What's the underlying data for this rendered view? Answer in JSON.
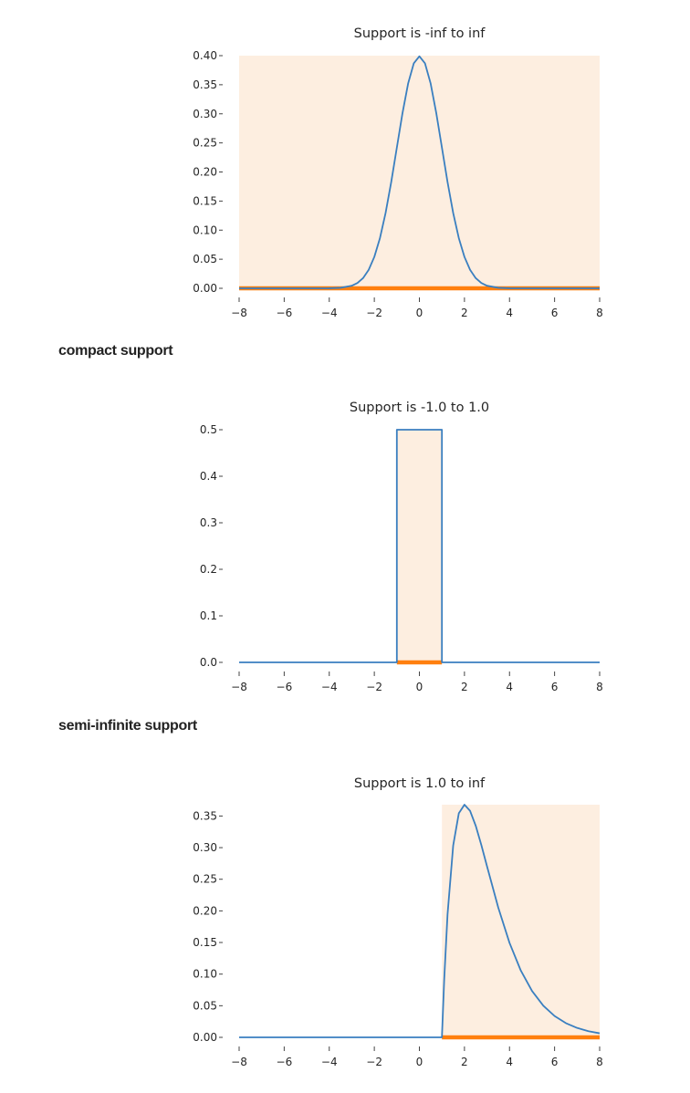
{
  "headings": [
    "compact support",
    "semi-infinite support"
  ],
  "colors": {
    "pdf_line": "#3a7fc0",
    "support_line": "#ff7f0e",
    "support_fill": "#fdeee0"
  },
  "chart_data": [
    {
      "type": "line",
      "title": "Support is -inf to inf",
      "xlabel": "",
      "ylabel": "",
      "xlim": [
        -8,
        8
      ],
      "ylim": [
        0,
        0.4
      ],
      "xticks": [
        -8,
        -6,
        -4,
        -2,
        0,
        2,
        4,
        6,
        8
      ],
      "yticks": [
        0,
        0.05,
        0.1,
        0.15,
        0.2,
        0.25,
        0.3,
        0.35,
        0.4
      ],
      "ytick_labels": [
        "0.00",
        "0.05",
        "0.10",
        "0.15",
        "0.20",
        "0.25",
        "0.30",
        "0.35",
        "0.40"
      ],
      "support": [
        -8,
        8
      ],
      "grid": false,
      "series": [
        {
          "x": [
            -8,
            -4,
            -3.5,
            -3,
            -2.75,
            -2.5,
            -2.25,
            -2,
            -1.75,
            -1.5,
            -1.25,
            -1,
            -0.75,
            -0.5,
            -0.25,
            0,
            0.25,
            0.5,
            0.75,
            1,
            1.25,
            1.5,
            1.75,
            2,
            2.25,
            2.5,
            2.75,
            3,
            3.5,
            4,
            8
          ],
          "y": [
            0,
            0.0001,
            0.0009,
            0.0044,
            0.0091,
            0.0175,
            0.0317,
            0.054,
            0.0863,
            0.1295,
            0.1826,
            0.242,
            0.3011,
            0.3521,
            0.3867,
            0.3989,
            0.3867,
            0.3521,
            0.3011,
            0.242,
            0.1826,
            0.1295,
            0.0863,
            0.054,
            0.0317,
            0.0175,
            0.0091,
            0.0044,
            0.0009,
            0.0001,
            0
          ]
        }
      ]
    },
    {
      "type": "line",
      "title": "Support is -1.0 to 1.0",
      "xlabel": "",
      "ylabel": "",
      "xlim": [
        -8,
        8
      ],
      "ylim": [
        0,
        0.5
      ],
      "xticks": [
        -8,
        -6,
        -4,
        -2,
        0,
        2,
        4,
        6,
        8
      ],
      "yticks": [
        0,
        0.1,
        0.2,
        0.3,
        0.4,
        0.5
      ],
      "ytick_labels": [
        "0.0",
        "0.1",
        "0.2",
        "0.3",
        "0.4",
        "0.5"
      ],
      "support": [
        -1,
        1
      ],
      "grid": false,
      "series": [
        {
          "x": [
            -8,
            -1,
            -1,
            1,
            1,
            8
          ],
          "y": [
            0,
            0,
            0.5,
            0.5,
            0,
            0
          ]
        }
      ]
    },
    {
      "type": "line",
      "title": "Support is 1.0 to inf",
      "xlabel": "",
      "ylabel": "",
      "xlim": [
        -8,
        8
      ],
      "ylim": [
        0,
        0.3679
      ],
      "xticks": [
        -8,
        -6,
        -4,
        -2,
        0,
        2,
        4,
        6,
        8
      ],
      "yticks": [
        0,
        0.05,
        0.1,
        0.15,
        0.2,
        0.25,
        0.3,
        0.35
      ],
      "ytick_labels": [
        "0.00",
        "0.05",
        "0.10",
        "0.15",
        "0.20",
        "0.25",
        "0.30",
        "0.35"
      ],
      "support": [
        1,
        8
      ],
      "grid": false,
      "series": [
        {
          "x": [
            -8,
            1,
            1.1,
            1.25,
            1.5,
            1.75,
            2,
            2.25,
            2.5,
            2.75,
            3,
            3.5,
            4,
            4.5,
            5,
            5.5,
            6,
            6.5,
            7,
            7.5,
            8
          ],
          "y": [
            0,
            0,
            0.0905,
            0.1947,
            0.3033,
            0.3543,
            0.3679,
            0.3581,
            0.3347,
            0.3041,
            0.2707,
            0.2052,
            0.1494,
            0.1057,
            0.0733,
            0.05,
            0.0337,
            0.0225,
            0.0149,
            0.0098,
            0.0064
          ]
        }
      ]
    }
  ]
}
